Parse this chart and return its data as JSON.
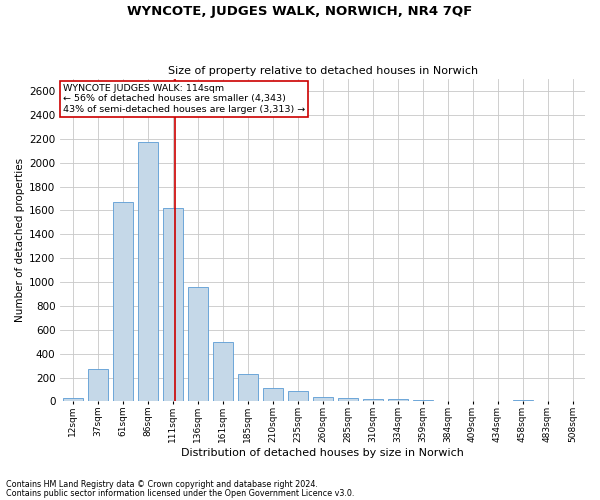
{
  "title": "WYNCOTE, JUDGES WALK, NORWICH, NR4 7QF",
  "subtitle": "Size of property relative to detached houses in Norwich",
  "xlabel": "Distribution of detached houses by size in Norwich",
  "ylabel": "Number of detached properties",
  "footnote1": "Contains HM Land Registry data © Crown copyright and database right 2024.",
  "footnote2": "Contains public sector information licensed under the Open Government Licence v3.0.",
  "annotation_line1": "WYNCOTE JUDGES WALK: 114sqm",
  "annotation_line2": "← 56% of detached houses are smaller (4,343)",
  "annotation_line3": "43% of semi-detached houses are larger (3,313) →",
  "bar_color": "#c5d8e8",
  "bar_edge_color": "#5b9bd5",
  "grid_color": "#c8c8c8",
  "vline_color": "#cc0000",
  "annotation_box_color": "#cc0000",
  "bins": [
    "12sqm",
    "37sqm",
    "61sqm",
    "86sqm",
    "111sqm",
    "136sqm",
    "161sqm",
    "185sqm",
    "210sqm",
    "235sqm",
    "260sqm",
    "285sqm",
    "310sqm",
    "334sqm",
    "359sqm",
    "384sqm",
    "409sqm",
    "434sqm",
    "458sqm",
    "483sqm",
    "508sqm"
  ],
  "values": [
    25,
    270,
    1670,
    2170,
    1620,
    960,
    500,
    230,
    110,
    90,
    35,
    30,
    22,
    18,
    12,
    5,
    5,
    2,
    10,
    2,
    2
  ],
  "ylim": [
    0,
    2700
  ],
  "yticks": [
    0,
    200,
    400,
    600,
    800,
    1000,
    1200,
    1400,
    1600,
    1800,
    2000,
    2200,
    2400,
    2600
  ],
  "vline_x": 4.08,
  "property_size": 114
}
